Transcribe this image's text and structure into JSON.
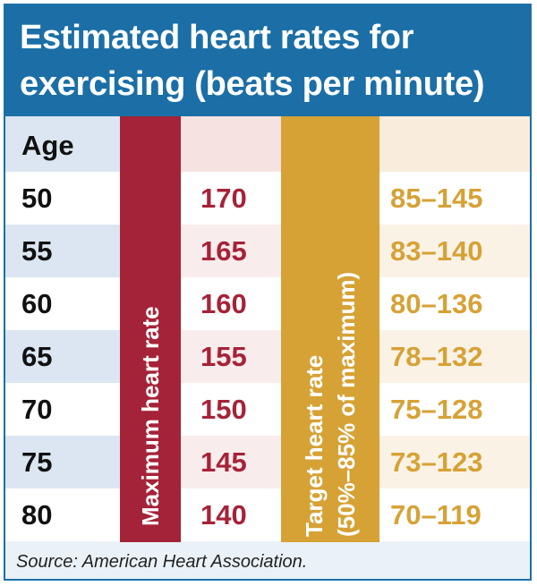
{
  "title": {
    "line1": "Estimated heart rates for",
    "line2": "exercising (beats per minute)"
  },
  "columns": {
    "age": "Age",
    "max": "Maximum heart rate",
    "target_line1": "Target heart rate",
    "target_line2": "(50%–85% of maximum)"
  },
  "rows": [
    {
      "age": "50",
      "max": "170",
      "target": "85–145"
    },
    {
      "age": "55",
      "max": "165",
      "target": "83–140"
    },
    {
      "age": "60",
      "max": "160",
      "target": "80–136"
    },
    {
      "age": "65",
      "max": "155",
      "target": "78–132"
    },
    {
      "age": "70",
      "max": "150",
      "target": "75–128"
    },
    {
      "age": "75",
      "max": "145",
      "target": "73–123"
    },
    {
      "age": "80",
      "max": "140",
      "target": "70–119"
    }
  ],
  "source": "Source: American Heart Association.",
  "colors": {
    "header_blue": "#1b6fa6",
    "max_red": "#a52338",
    "target_gold": "#d6a236"
  }
}
